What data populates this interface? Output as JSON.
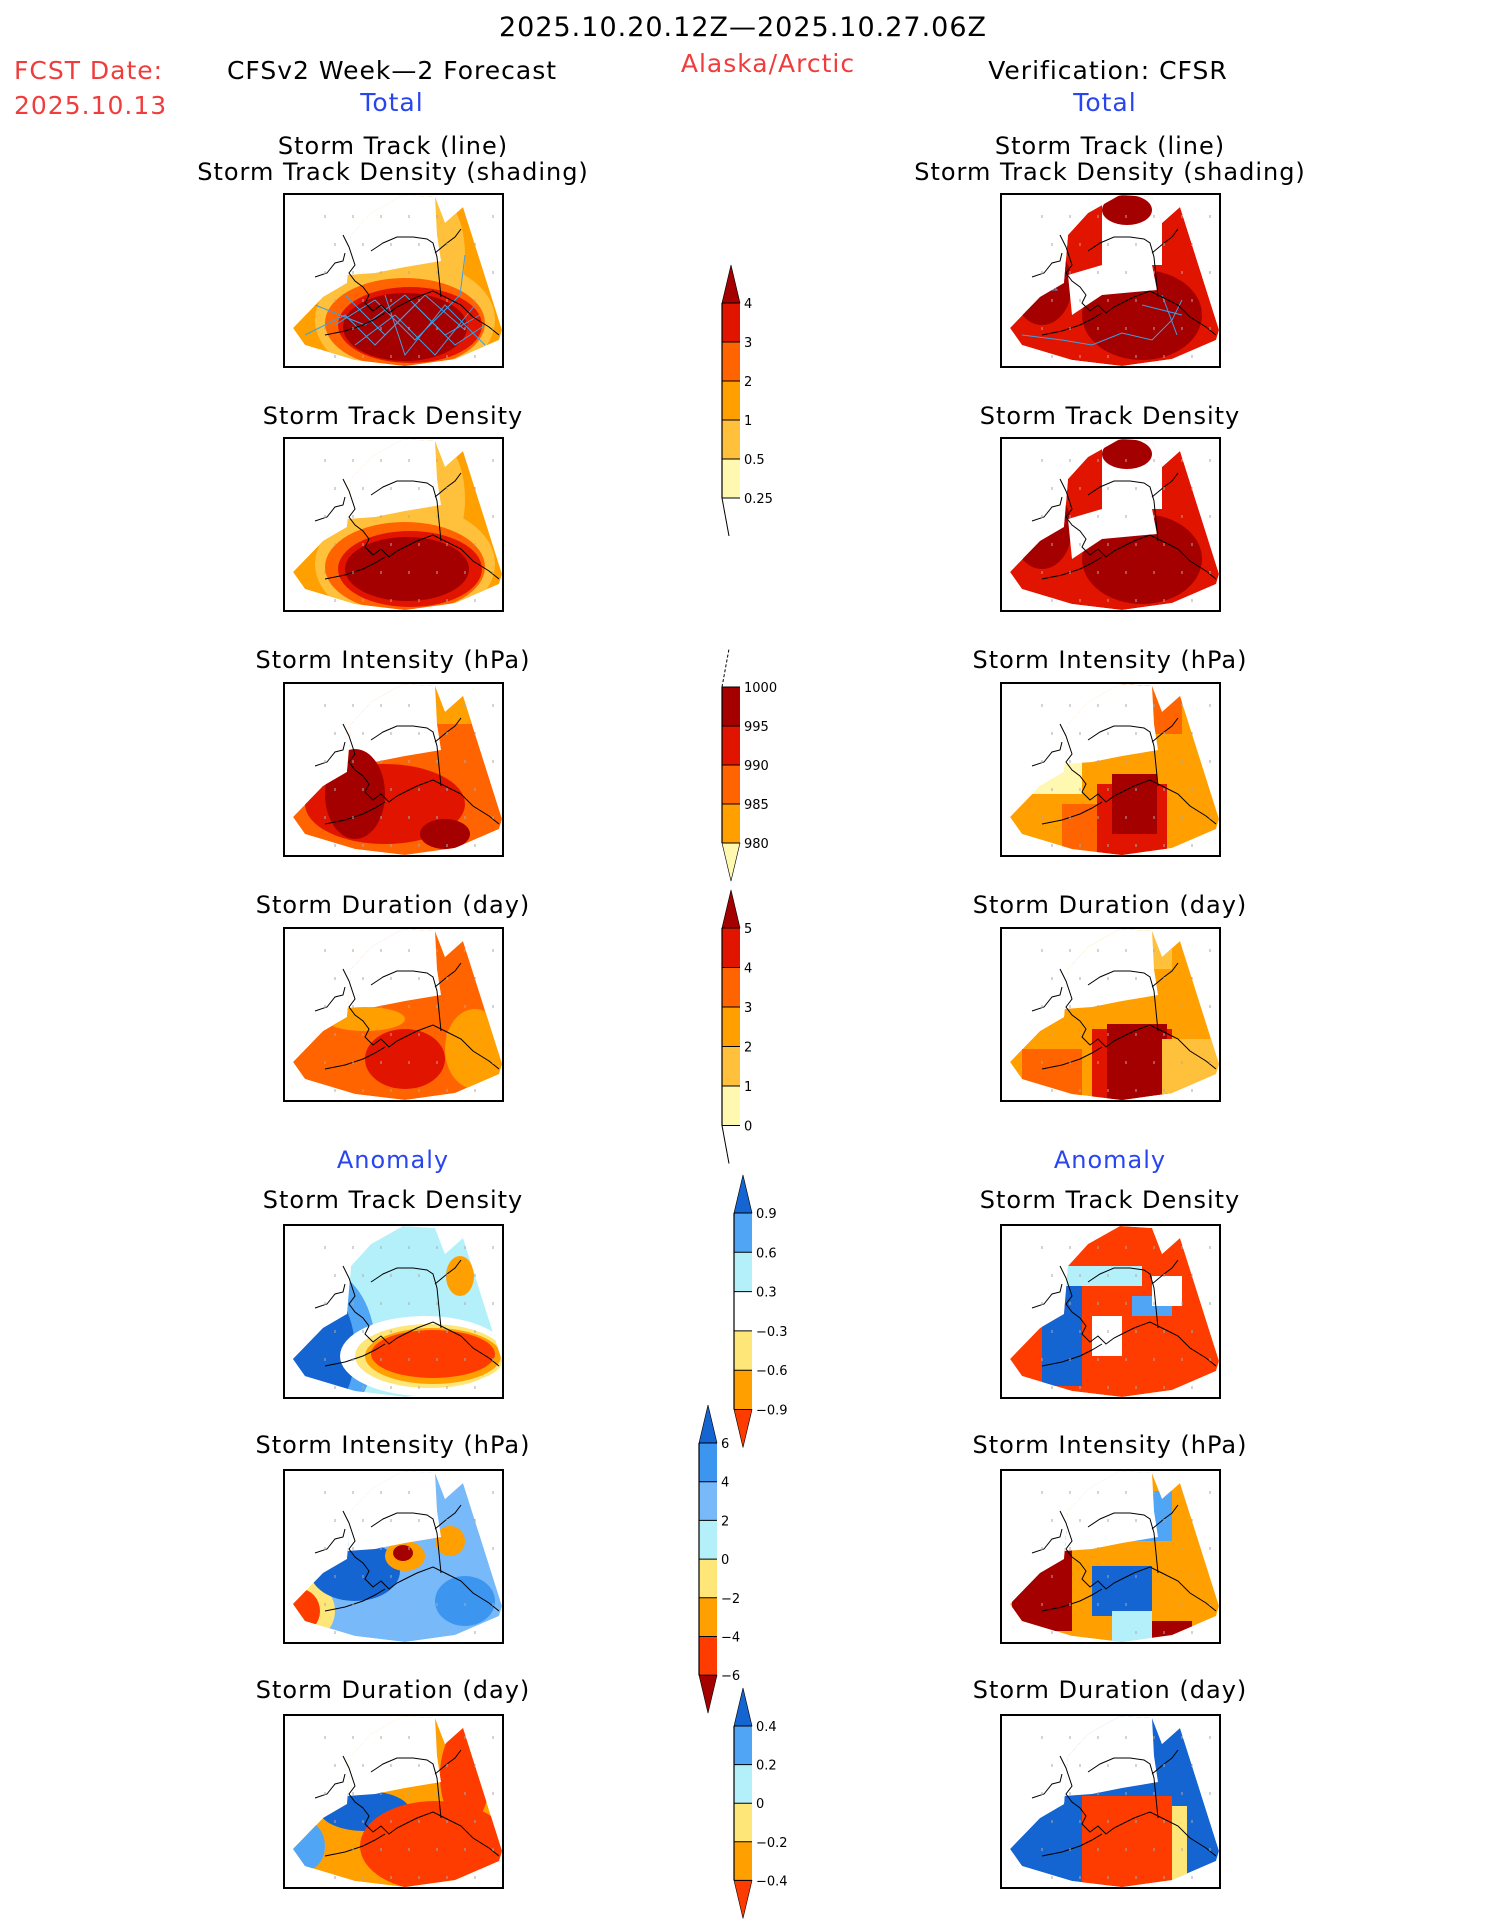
{
  "header": {
    "period": "2025.10.20.12Z—2025.10.27.06Z",
    "region": "Alaska/Arctic",
    "fcst_label": "FCST Date:",
    "fcst_date": "2025.10.13",
    "left_title": "CFSv2 Week—2 Forecast",
    "right_title": "Verification: CFSR",
    "total_label": "Total",
    "anomaly_label": "Anomaly"
  },
  "panel_titles": {
    "track_line": "Storm Track (line)",
    "track_shading": "Storm Track Density (shading)",
    "density": "Storm Track Density",
    "intensity": "Storm Intensity (hPa)",
    "duration": "Storm Duration (day)"
  },
  "colors": {
    "c1": "#fff8b0",
    "c2": "#ffc03c",
    "c3": "#ffa000",
    "c4": "#ff6400",
    "c5": "#e11400",
    "c6": "#a50000",
    "a_pos3": "#ff3c00",
    "a_pos2": "#ffa000",
    "a_pos1": "#ffe678",
    "a_neg1": "#b4f0fa",
    "a_neg2": "#50a5f5",
    "a_neg3": "#1464d2",
    "a_neg2b": "#78b9fa",
    "a_neg3b": "#3c96f0",
    "a_pos4": "#a50000",
    "track": "#3ca0e6"
  },
  "chart_data": [
    {
      "type": "heatmap",
      "name": "total-colorbar-density",
      "title": "Storm Track Density",
      "tick_labels": [
        "4",
        "3",
        "2",
        "1",
        "0.5",
        "0.25"
      ],
      "levels": [
        0.25,
        0.5,
        1,
        2,
        3,
        4
      ],
      "colors": [
        "#fff8b0",
        "#ffc03c",
        "#ffa000",
        "#ff6400",
        "#e11400",
        "#a50000"
      ]
    },
    {
      "type": "heatmap",
      "name": "total-colorbar-intensity",
      "title": "Storm Intensity (hPa)",
      "tick_labels": [
        "1000",
        "995",
        "990",
        "985",
        "980"
      ],
      "levels": [
        1000,
        995,
        990,
        985,
        980
      ],
      "colors": [
        "#fff8b0",
        "#ffa000",
        "#ff6400",
        "#e11400",
        "#a50000"
      ]
    },
    {
      "type": "heatmap",
      "name": "total-colorbar-duration",
      "title": "Storm Duration (day)",
      "tick_labels": [
        "5",
        "4",
        "3",
        "2",
        "1",
        "0"
      ],
      "levels": [
        0,
        1,
        2,
        3,
        4,
        5
      ],
      "colors": [
        "#fff8b0",
        "#ffc03c",
        "#ffa000",
        "#ff6400",
        "#e11400",
        "#a50000"
      ]
    },
    {
      "type": "heatmap",
      "name": "anomaly-colorbar-density",
      "title": "Storm Track Density Anomaly",
      "tick_labels": [
        "0.9",
        "0.6",
        "0.3",
        "−0.3",
        "−0.6",
        "−0.9"
      ],
      "levels": [
        0.9,
        0.6,
        0.3,
        -0.3,
        -0.6,
        -0.9
      ],
      "colors": [
        "#ff3c00",
        "#ffa000",
        "#ffe678",
        "#ffffff",
        "#b4f0fa",
        "#50a5f5",
        "#1464d2"
      ]
    },
    {
      "type": "heatmap",
      "name": "anomaly-colorbar-intensity",
      "title": "Storm Intensity Anomaly (hPa)",
      "tick_labels": [
        "6",
        "4",
        "2",
        "0",
        "−2",
        "−4",
        "−6"
      ],
      "levels": [
        6,
        4,
        2,
        0,
        -2,
        -4,
        -6
      ],
      "colors": [
        "#a50000",
        "#ff3c00",
        "#ffa000",
        "#ffe678",
        "#b4f0fa",
        "#78b9fa",
        "#3c96f0",
        "#1464d2"
      ]
    },
    {
      "type": "heatmap",
      "name": "anomaly-colorbar-duration",
      "title": "Storm Duration Anomaly (day)",
      "tick_labels": [
        "0.4",
        "0.2",
        "0",
        "−0.2",
        "−0.4"
      ],
      "levels": [
        0.4,
        0.2,
        0,
        -0.2,
        -0.4
      ],
      "colors": [
        "#ff3c00",
        "#ffa000",
        "#ffe678",
        "#b4f0fa",
        "#50a5f5",
        "#1464d2"
      ]
    }
  ]
}
